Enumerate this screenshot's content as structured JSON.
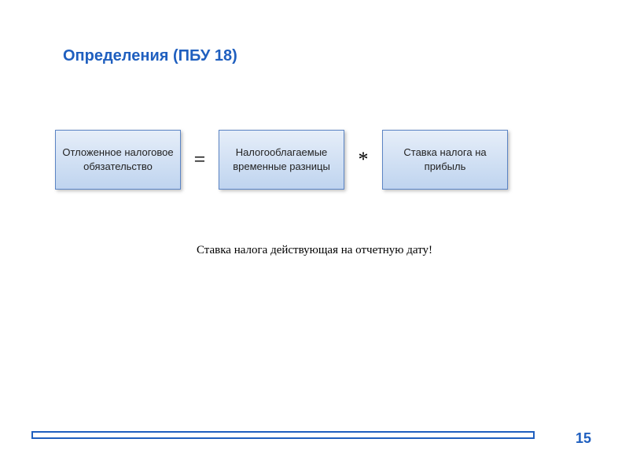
{
  "title": {
    "text": "Определения (ПБУ 18)",
    "color": "#1f5fbf",
    "fontsize": 20
  },
  "equation": {
    "box_bg_gradient_top": "#e6eef9",
    "box_bg_gradient_bottom": "#bfd4ef",
    "box_border_color": "#5b84c4",
    "box_text_color": "#222222",
    "box_fontsize": 13,
    "operator_color": "#000000",
    "boxes": [
      {
        "label": "Отложенное налоговое обязательство"
      },
      {
        "label": "Налогооблагаемые временные разницы"
      },
      {
        "label": "Ставка налога на прибыль"
      }
    ],
    "operators": [
      {
        "symbol": "="
      },
      {
        "symbol": "*"
      }
    ]
  },
  "note": {
    "text": "Ставка налога действующая на отчетную дату!",
    "color": "#000000",
    "fontsize": 15
  },
  "footer": {
    "bar_border_color": "#1f5fbf",
    "page_number": "15",
    "page_number_color": "#1f5fbf"
  }
}
